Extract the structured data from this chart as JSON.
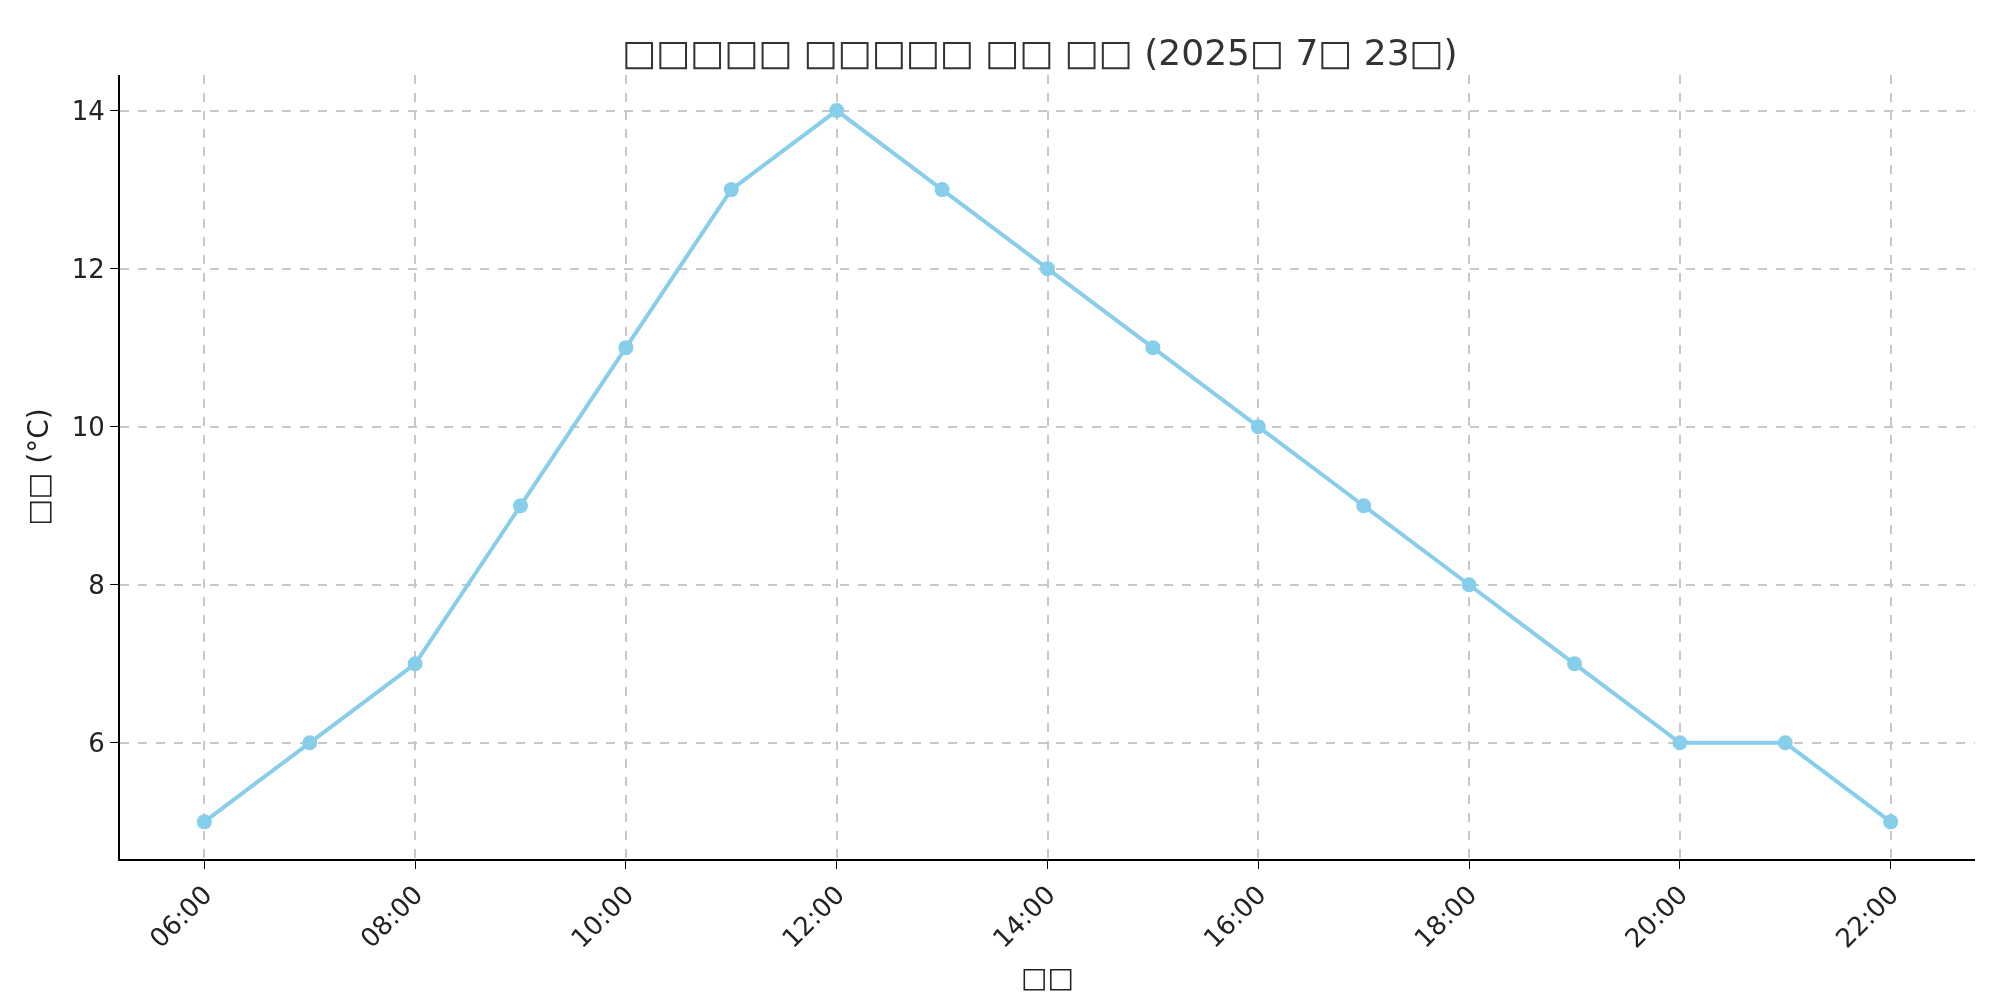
{
  "chart_data": {
    "type": "line",
    "title": "□□□□□ □□□□□ □□ □□ (2025□ 7□ 23□)",
    "xlabel": "□□",
    "ylabel": "□□ (°C)",
    "x": [
      6,
      7,
      8,
      9,
      10,
      11,
      12,
      13,
      14,
      15,
      16,
      17,
      18,
      19,
      20,
      21,
      22
    ],
    "series": [
      {
        "color": "#87ceeb",
        "values": [
          5,
          6,
          7,
          9,
          11,
          13,
          14,
          13,
          12,
          11,
          10,
          9,
          8,
          7,
          6,
          6,
          5
        ]
      }
    ],
    "xlim": [
      5.2,
      22.8
    ],
    "xticks": [
      {
        "value": 6,
        "label": "06:00"
      },
      {
        "value": 8,
        "label": "08:00"
      },
      {
        "value": 10,
        "label": "10:00"
      },
      {
        "value": 12,
        "label": "12:00"
      },
      {
        "value": 14,
        "label": "14:00"
      },
      {
        "value": 16,
        "label": "16:00"
      },
      {
        "value": 18,
        "label": "18:00"
      },
      {
        "value": 20,
        "label": "20:00"
      },
      {
        "value": 22,
        "label": "22:00"
      }
    ],
    "ylim": [
      4.53,
      14.45
    ],
    "yticks": [
      6,
      8,
      10,
      12,
      14
    ],
    "grid": true,
    "marker": "circle",
    "line_style": "solid"
  }
}
